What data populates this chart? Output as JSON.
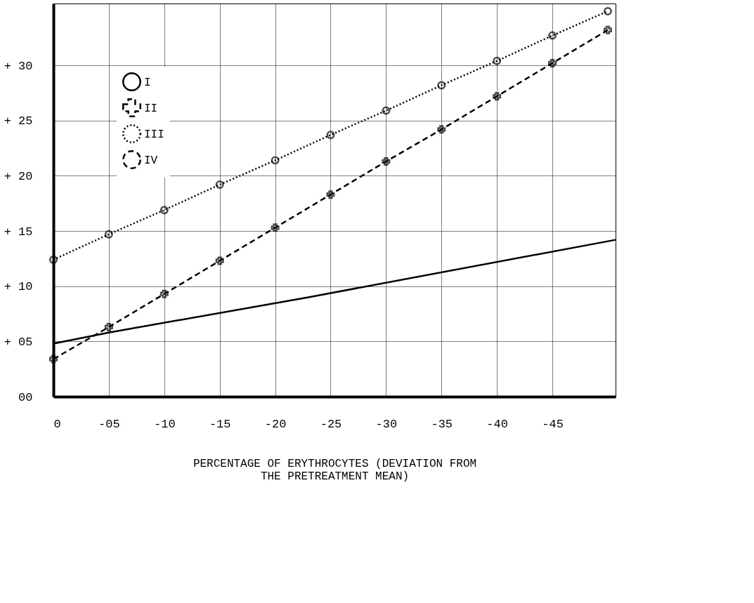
{
  "chart_data": {
    "type": "line",
    "xlabel": "PERCENTAGE OF ERYTHROCYTES (DEVIATION FROM THE PRETREATMENT MEAN)",
    "xlim": [
      0,
      -50.7
    ],
    "ylim": [
      0,
      35.6
    ],
    "xticks": [
      0,
      {
        "value": -5,
        "label": "-05"
      },
      -10,
      -15,
      -20,
      -25,
      -30,
      -35,
      -40,
      -45
    ],
    "yticks": [
      {
        "value": 0,
        "label": "00"
      },
      {
        "value": 5,
        "label": "+ 05"
      },
      {
        "value": 10,
        "label": "+ 10"
      },
      {
        "value": 15,
        "label": "+ 15"
      },
      {
        "value": 20,
        "label": "+ 20"
      },
      {
        "value": 25,
        "label": "+ 25"
      },
      {
        "value": 30,
        "label": "+ 30"
      }
    ],
    "grid": true,
    "legend": "top left",
    "series": [
      {
        "name": "I",
        "color": "#000000",
        "line_style": "solid",
        "marker": "none",
        "x": [
          0,
          -5,
          -23,
          -50.7
        ],
        "values": [
          4.8,
          5.8,
          9.0,
          14.2
        ]
      },
      {
        "name": "II",
        "color": "#000000",
        "line_style": "dashed",
        "marker": "cross",
        "x": [
          0,
          -5,
          -10,
          -15,
          -20,
          -25,
          -30,
          -35,
          -40,
          -45,
          -50
        ],
        "values": [
          3.4,
          6.3,
          9.3,
          12.3,
          15.3,
          18.3,
          21.3,
          24.2,
          27.2,
          30.2,
          33.2
        ]
      },
      {
        "name": "III",
        "color": "#000000",
        "line_style": "dotted",
        "marker": "circle",
        "x": [
          0,
          -5,
          -10,
          -15,
          -20,
          -25,
          -30,
          -35,
          -40,
          -45,
          -50
        ],
        "values": [
          12.4,
          14.7,
          16.9,
          19.2,
          21.4,
          23.7,
          25.9,
          28.2,
          30.4,
          32.7,
          34.9
        ]
      },
      {
        "name": "IV",
        "color": "#000000",
        "line_style": "dashed",
        "marker": "none"
      }
    ]
  }
}
